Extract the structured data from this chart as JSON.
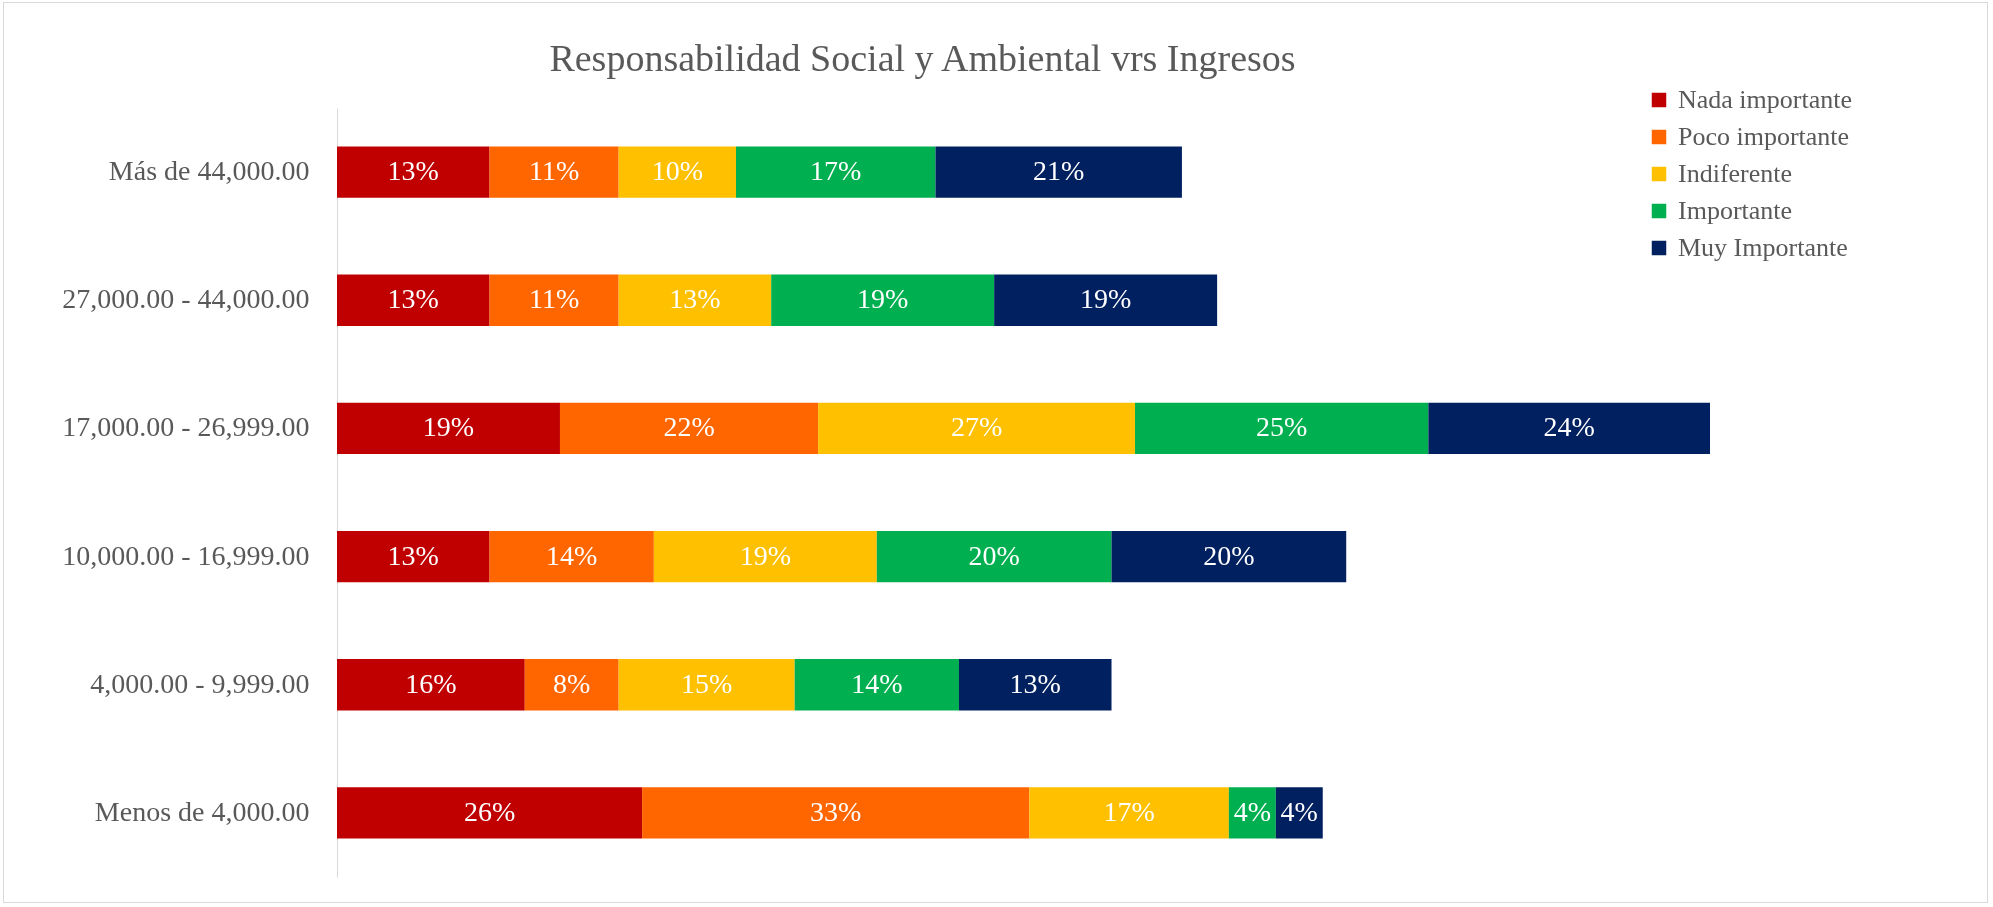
{
  "chart_data": {
    "type": "bar",
    "orientation": "horizontal",
    "stacked": true,
    "title": "Responsabilidad Social y Ambiental vrs Ingresos",
    "categories": [
      "Más de 44,000.00",
      "27,000.00 - 44,000.00",
      "17,000.00 - 26,999.00",
      "10,000.00 - 16,999.00",
      "4,000.00 - 9,999.00",
      "Menos de 4,000.00"
    ],
    "series": [
      {
        "name": "Nada importante",
        "color": "#c00000",
        "values": [
          13,
          13,
          19,
          13,
          16,
          26
        ],
        "value_labels": [
          "13%",
          "13%",
          "19%",
          "13%",
          "16%",
          "26%"
        ]
      },
      {
        "name": "Poco importante",
        "color": "#ff6600",
        "values": [
          11,
          11,
          22,
          14,
          8,
          33
        ],
        "value_labels": [
          "11%",
          "11%",
          "22%",
          "14%",
          "8%",
          "33%"
        ]
      },
      {
        "name": "Indiferente",
        "color": "#ffc000",
        "values": [
          10,
          13,
          27,
          19,
          15,
          17
        ],
        "value_labels": [
          "10%",
          "13%",
          "27%",
          "19%",
          "15%",
          "17%"
        ]
      },
      {
        "name": "Importante",
        "color": "#00b050",
        "values": [
          17,
          19,
          25,
          20,
          14,
          4
        ],
        "value_labels": [
          "17%",
          "19%",
          "25%",
          "20%",
          "14%",
          "4%"
        ]
      },
      {
        "name": "Muy Importante",
        "color": "#002060",
        "values": [
          21,
          19,
          24,
          20,
          13,
          4
        ],
        "value_labels": [
          "21%",
          "19%",
          "24%",
          "20%",
          "13%",
          "4%"
        ]
      }
    ],
    "legend": "top right",
    "tick_labels": "y"
  }
}
